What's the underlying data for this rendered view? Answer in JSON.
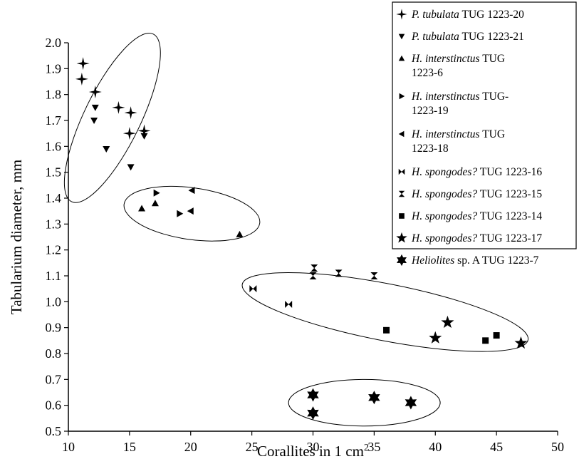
{
  "chart_data": {
    "type": "scatter",
    "title": "",
    "xlabel": "Corallites in 1 cm",
    "xlabel_sup": "2",
    "ylabel": "Tabularium diameter, mm",
    "xlim": [
      10,
      50
    ],
    "ylim": [
      0.5,
      2.0
    ],
    "xticks": [
      "10",
      "15",
      "20",
      "25",
      "30",
      "35",
      "40",
      "45",
      "50"
    ],
    "yticks": [
      "0.5",
      "0.6",
      "0.7",
      "0.8",
      "0.9",
      "1.0",
      "1.1",
      "1.2",
      "1.3",
      "1.4",
      "1.5",
      "1.6",
      "1.7",
      "1.8",
      "1.9",
      "2.0"
    ],
    "grid": false,
    "legend_position": "top-right",
    "series": [
      {
        "name": "P. tubulata TUG 1223-20",
        "italic": "P. tubulata",
        "rest": " TUG 1223-20",
        "marker": "star4",
        "points": [
          [
            11.2,
            1.92
          ],
          [
            11.1,
            1.86
          ],
          [
            12.2,
            1.81
          ],
          [
            14.1,
            1.75
          ],
          [
            15.1,
            1.73
          ],
          [
            15.0,
            1.65
          ],
          [
            16.2,
            1.66
          ]
        ]
      },
      {
        "name": "P. tubulata TUG 1223-21",
        "italic": "P. tubulata",
        "rest": " TUG 1223-21",
        "marker": "tri-down",
        "points": [
          [
            12.2,
            1.75
          ],
          [
            12.1,
            1.7
          ],
          [
            13.1,
            1.59
          ],
          [
            15.1,
            1.52
          ],
          [
            16.2,
            1.64
          ]
        ]
      },
      {
        "name": "H. interstinctus TUG 1223-6",
        "italic": "H. interstinctus",
        "rest": " TUG",
        "rest2": "1223-6",
        "marker": "tri-up",
        "points": [
          [
            16.0,
            1.36
          ],
          [
            17.1,
            1.38
          ],
          [
            24.0,
            1.26
          ]
        ]
      },
      {
        "name": "H. interstinctus TUG-1223-19",
        "italic": "H. interstinctus",
        "rest": " TUG-",
        "rest2": "1223-19",
        "marker": "tri-right",
        "points": [
          [
            17.2,
            1.42
          ],
          [
            19.1,
            1.34
          ]
        ]
      },
      {
        "name": "H. interstinctus TUG 1223-18",
        "italic": "H. interstinctus",
        "rest": " TUG",
        "rest2": "1223-18",
        "marker": "tri-left",
        "points": [
          [
            20.1,
            1.43
          ],
          [
            20.0,
            1.35
          ]
        ]
      },
      {
        "name": "H. spongodes? TUG 1223-16",
        "italic": "H. spongodes?",
        "rest": " TUG 1223-16",
        "marker": "bowtie-h",
        "points": [
          [
            25.1,
            1.05
          ],
          [
            28.0,
            0.99
          ]
        ]
      },
      {
        "name": "H. spongodes? TUG 1223-15",
        "italic": "H. spongodes?",
        "rest": " TUG 1223-15",
        "marker": "bowtie-v",
        "points": [
          [
            30.1,
            1.13
          ],
          [
            30.0,
            1.1
          ],
          [
            32.1,
            1.11
          ],
          [
            35.0,
            1.1
          ]
        ]
      },
      {
        "name": "H. spongodes? TUG 1223-14",
        "italic": "H. spongodes?",
        "rest": " TUG 1223-14",
        "marker": "square",
        "points": [
          [
            36.0,
            0.89
          ],
          [
            44.1,
            0.85
          ],
          [
            45.0,
            0.87
          ]
        ]
      },
      {
        "name": "H. spongodes? TUG 1223-17",
        "italic": "H. spongodes?",
        "rest": " TUG 1223-17",
        "marker": "star5",
        "points": [
          [
            40.0,
            0.86
          ],
          [
            41.0,
            0.92
          ],
          [
            47.0,
            0.84
          ]
        ]
      },
      {
        "name": "Heliolites sp. A TUG 1223-7",
        "italic": "Heliolites",
        "rest": " sp. A TUG 1223-7",
        "marker": "star6",
        "points": [
          [
            30.0,
            0.64
          ],
          [
            30.0,
            0.57
          ],
          [
            35.0,
            0.63
          ],
          [
            38.0,
            0.61
          ]
        ]
      }
    ],
    "groupings": [
      {
        "type": "ellipse",
        "cx": 13.6,
        "cy": 1.71,
        "rx_data": 2.3,
        "ry_data": 0.36,
        "rotation_deg": 26
      },
      {
        "type": "ellipse",
        "cx": 20.1,
        "cy": 1.34,
        "rx_data": 5.6,
        "ry_data": 0.1,
        "rotation_deg": 8
      },
      {
        "type": "ellipse",
        "cx": 35.9,
        "cy": 0.96,
        "rx_data": 11.9,
        "ry_data": 0.11,
        "rotation_deg": 11
      },
      {
        "type": "ellipse",
        "cx": 34.2,
        "cy": 0.61,
        "rx_data": 6.2,
        "ry_data": 0.09,
        "rotation_deg": 0
      }
    ]
  }
}
